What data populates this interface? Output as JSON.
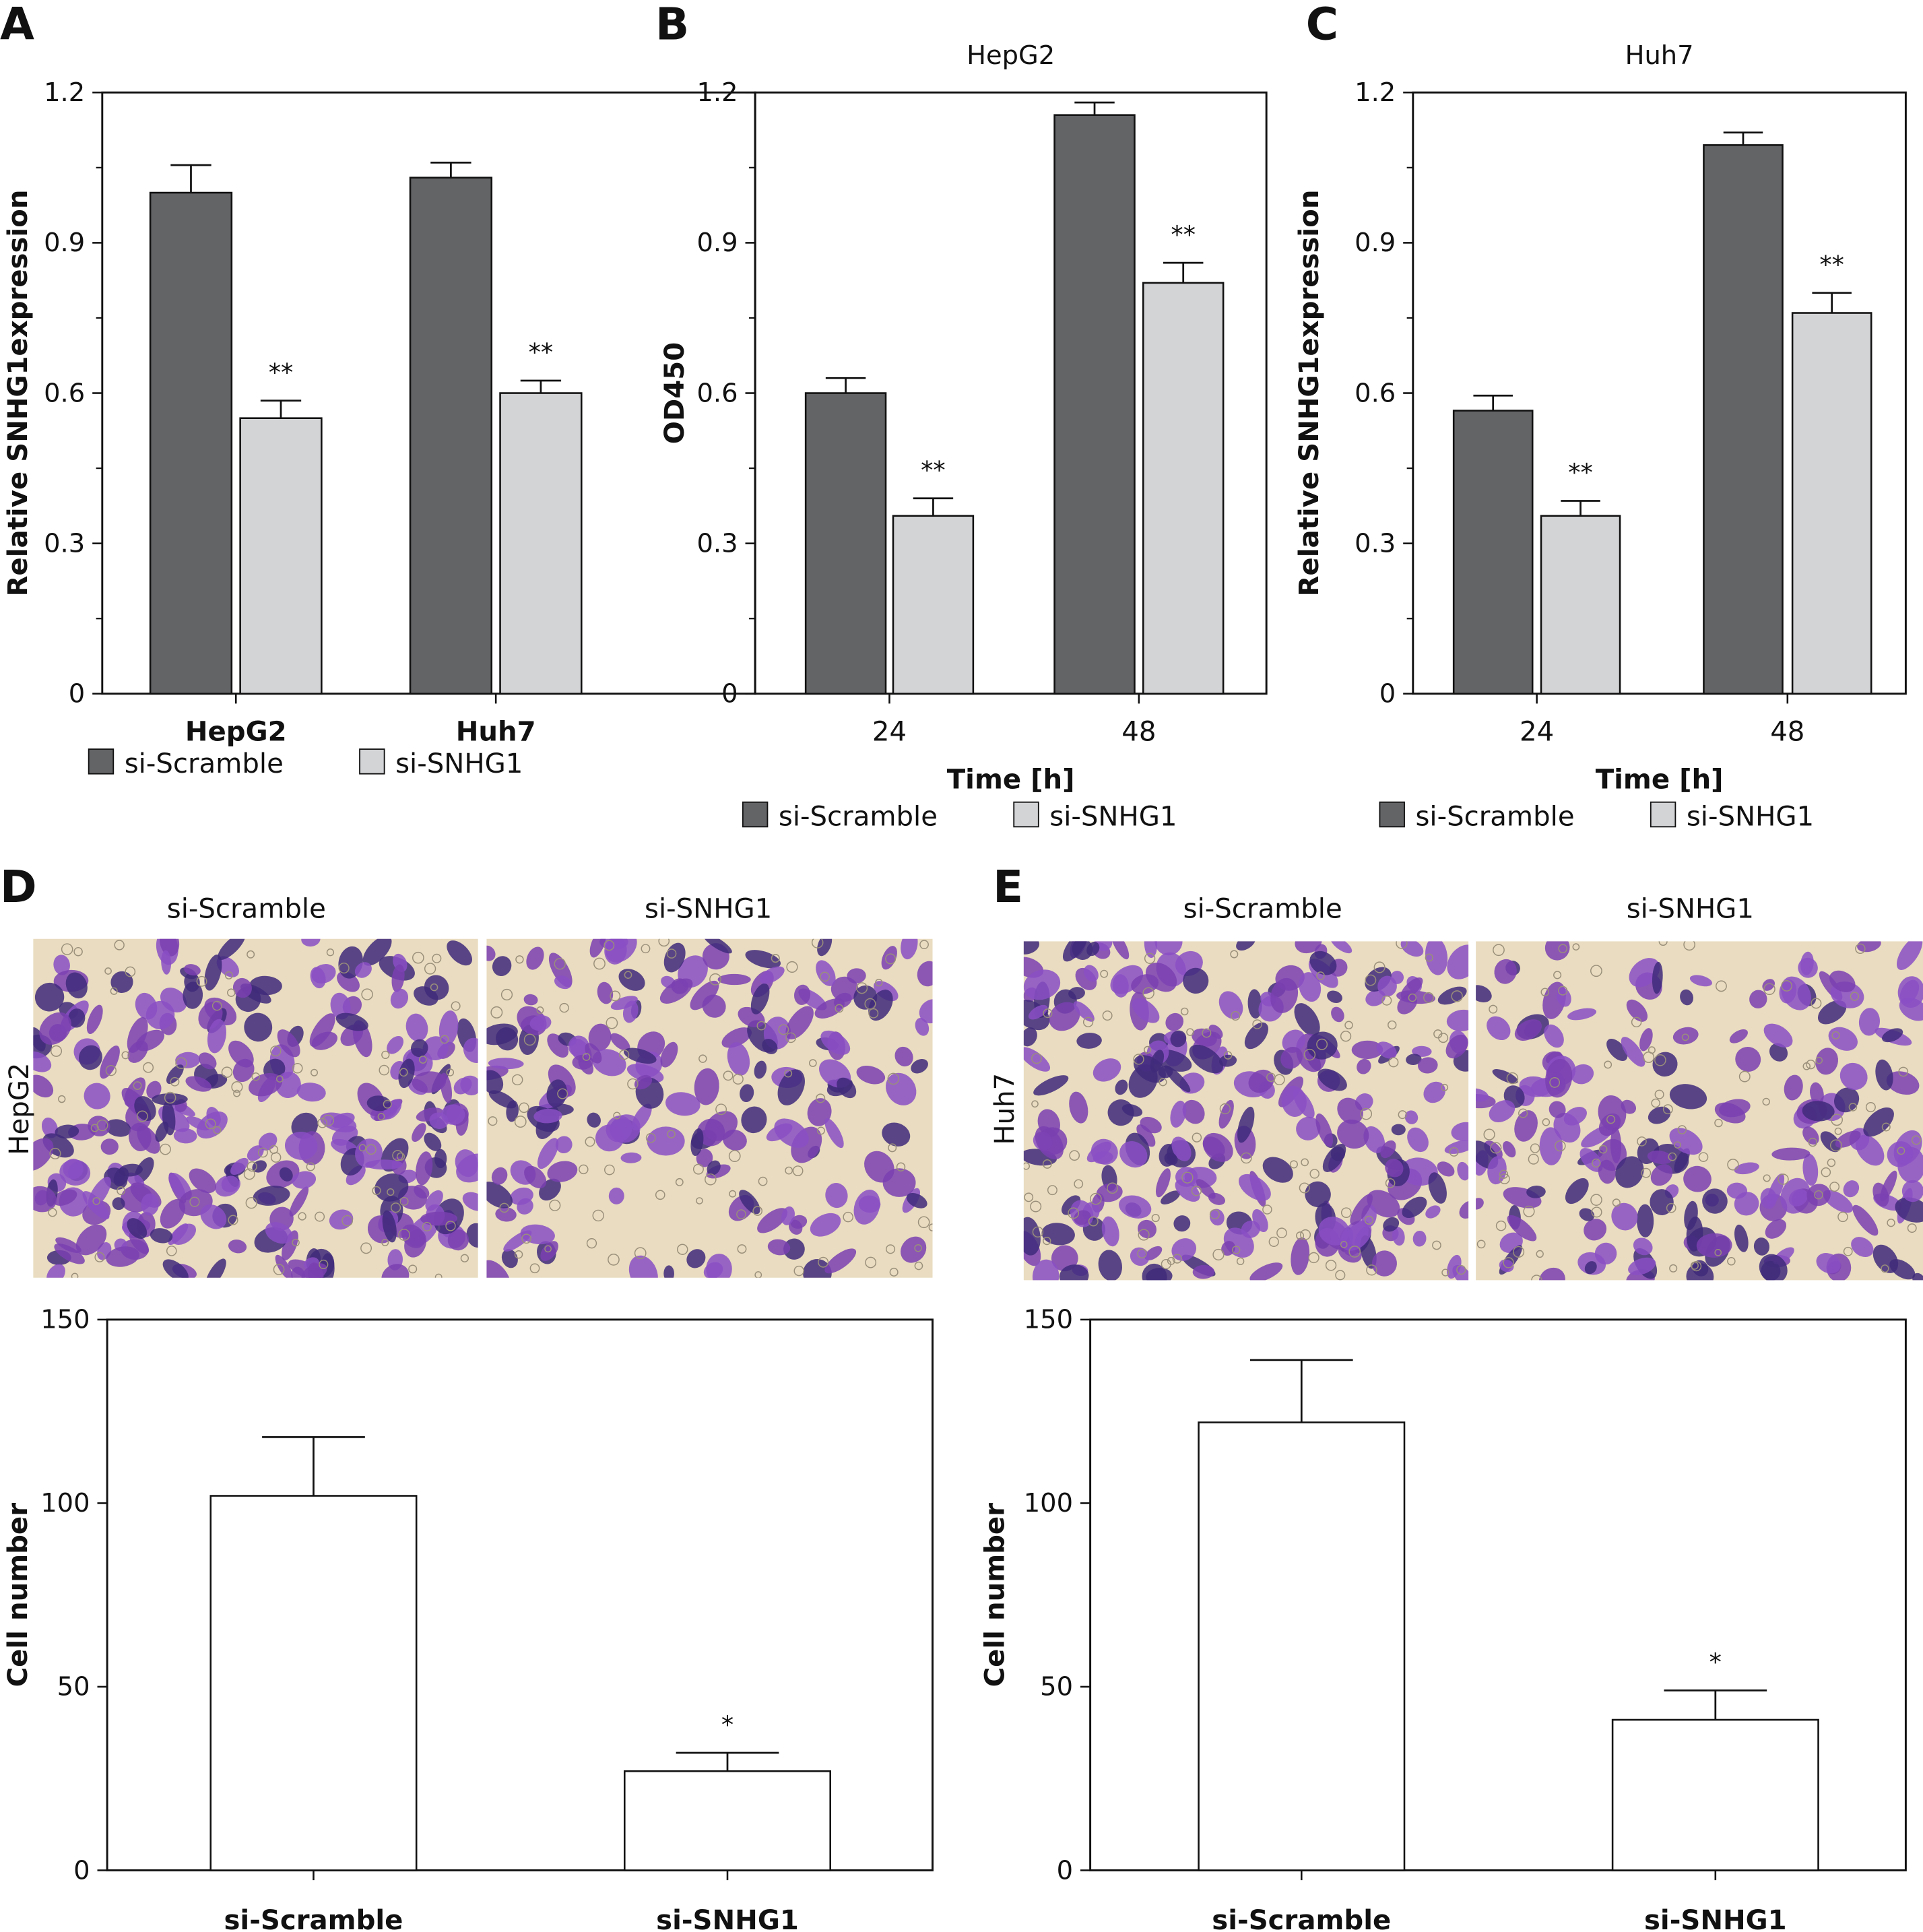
{
  "panel_letters": {
    "A": "A",
    "B": "B",
    "C": "C",
    "D": "D",
    "E": "E"
  },
  "colors": {
    "si_scramble": "#636466",
    "si_snhg1": "#d3d4d6",
    "white_bar": "#ffffff",
    "stain": "#7a3fb0",
    "background_field": "#e9dcc0"
  },
  "images": {
    "D": {
      "columns": [
        "si-Scramble",
        "si-SNHG1"
      ],
      "row_label": "HepG2"
    },
    "E": {
      "columns": [
        "si-Scramble",
        "si-SNHG1"
      ],
      "row_label": "Huh7"
    }
  },
  "chart_data": [
    {
      "id": "A",
      "type": "bar",
      "title": "",
      "categories": [
        "HepG2",
        "Huh7"
      ],
      "xlabel": "",
      "ylabel": "Relative SNHG1expression",
      "ylim": [
        0,
        1.2
      ],
      "yticks": [
        "0",
        "0.3",
        "0.6",
        "0.9",
        "1.2"
      ],
      "ytick_values": [
        0,
        0.3,
        0.6,
        0.9,
        1.2
      ],
      "series": [
        {
          "name": "si-Scramble",
          "values": [
            1.0,
            1.03
          ],
          "errors": [
            0.055,
            0.03
          ],
          "annotations": [
            "",
            ""
          ]
        },
        {
          "name": "si-SNHG1",
          "values": [
            0.55,
            0.6
          ],
          "errors": [
            0.035,
            0.025
          ],
          "annotations": [
            "**",
            "**"
          ]
        }
      ],
      "legend": "bottom"
    },
    {
      "id": "B",
      "type": "bar",
      "title": "HepG2",
      "categories": [
        "24",
        "48"
      ],
      "xlabel": "Time [h]",
      "ylabel": "OD450",
      "ylim": [
        0,
        1.2
      ],
      "yticks": [
        "0",
        "0.3",
        "0.6",
        "0.9",
        "1.2"
      ],
      "ytick_values": [
        0,
        0.3,
        0.6,
        0.9,
        1.2
      ],
      "series": [
        {
          "name": "si-Scramble",
          "values": [
            0.6,
            1.155
          ],
          "errors": [
            0.03,
            0.025
          ],
          "annotations": [
            "",
            ""
          ]
        },
        {
          "name": "si-SNHG1",
          "values": [
            0.355,
            0.82
          ],
          "errors": [
            0.035,
            0.04
          ],
          "annotations": [
            "**",
            "**"
          ]
        }
      ],
      "legend": "bottom"
    },
    {
      "id": "C",
      "type": "bar",
      "title": "Huh7",
      "categories": [
        "24",
        "48"
      ],
      "xlabel": "Time [h]",
      "ylabel": "Relative SNHG1expression",
      "ylim": [
        0,
        1.2
      ],
      "yticks": [
        "0",
        "0.3",
        "0.6",
        "0.9",
        "1.2"
      ],
      "ytick_values": [
        0,
        0.3,
        0.6,
        0.9,
        1.2
      ],
      "series": [
        {
          "name": "si-Scramble",
          "values": [
            0.565,
            1.095
          ],
          "errors": [
            0.03,
            0.025
          ],
          "annotations": [
            "",
            ""
          ]
        },
        {
          "name": "si-SNHG1",
          "values": [
            0.355,
            0.76
          ],
          "errors": [
            0.03,
            0.04
          ],
          "annotations": [
            "**",
            "**"
          ]
        }
      ],
      "legend": "bottom"
    },
    {
      "id": "D",
      "type": "bar",
      "title": "",
      "categories": [
        "si-Scramble",
        "si-SNHG1"
      ],
      "xlabel": "",
      "ylabel": "Cell number",
      "ylim": [
        0,
        150
      ],
      "yticks": [
        "0",
        "50",
        "100",
        "150"
      ],
      "ytick_values": [
        0,
        50,
        100,
        150
      ],
      "series": [
        {
          "name": "Cell number",
          "values": [
            102,
            27
          ],
          "errors": [
            16,
            5
          ],
          "annotations": [
            "",
            "*"
          ]
        }
      ],
      "legend": "none"
    },
    {
      "id": "E",
      "type": "bar",
      "title": "",
      "categories": [
        "si-Scramble",
        "si-SNHG1"
      ],
      "xlabel": "",
      "ylabel": "Cell number",
      "ylim": [
        0,
        150
      ],
      "yticks": [
        "0",
        "50",
        "100",
        "150"
      ],
      "ytick_values": [
        0,
        50,
        100,
        150
      ],
      "series": [
        {
          "name": "Cell number",
          "values": [
            122,
            41
          ],
          "errors": [
            17,
            8
          ],
          "annotations": [
            "",
            "*"
          ]
        }
      ],
      "legend": "none"
    }
  ]
}
